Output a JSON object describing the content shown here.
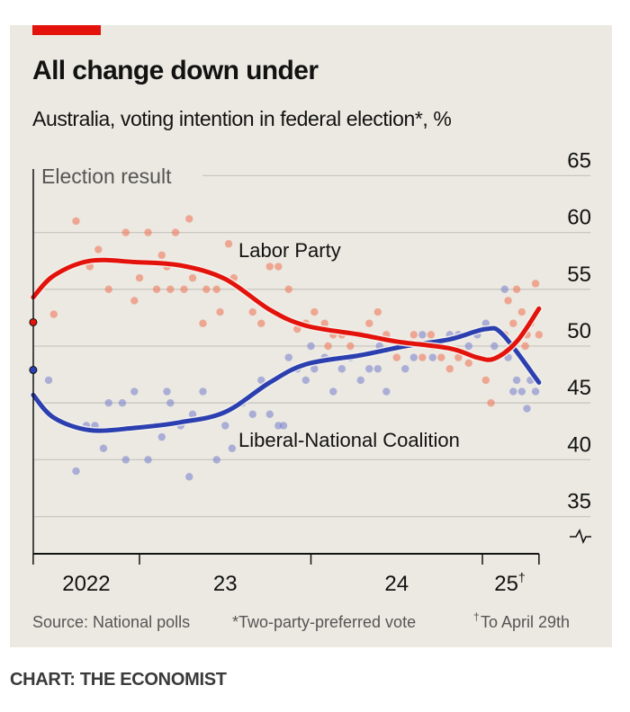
{
  "colors": {
    "labor": "#e3120b",
    "coalition": "#2b3fb0",
    "labor_dot": "#f07a5e",
    "coalition_dot": "#7f86cf",
    "accent": "#e3120b"
  },
  "chart_data": {
    "type": "line",
    "title": "All change down under",
    "subtitle": "Australia, voting intention in federal election*, %",
    "xlabel": "",
    "ylabel": "%",
    "ylim": [
      32,
      65
    ],
    "xlim": [
      2022.38,
      2025.33
    ],
    "y_ticks": [
      35,
      40,
      45,
      50,
      55,
      60,
      65
    ],
    "y_tick_labels": [
      "35",
      "40",
      "45",
      "50",
      "55",
      "60",
      "65"
    ],
    "x_ticks": [
      2022.38,
      2023.0,
      2024.0,
      2025.0,
      2025.33
    ],
    "x_tick_labels": [
      {
        "label": "2022",
        "at": 2022.69,
        "sup": ""
      },
      {
        "label": "23",
        "at": 2023.5,
        "sup": ""
      },
      {
        "label": "24",
        "at": 2024.5,
        "sup": ""
      },
      {
        "label": "25",
        "at": 2025.16,
        "sup": "†"
      }
    ],
    "grid": true,
    "axis_break": true,
    "election_label": "Election result",
    "election_result": {
      "t": 2022.38,
      "labor": 52.1,
      "coalition": 47.9
    },
    "series": [
      {
        "name": "Labor Party",
        "key": "labor",
        "trend": [
          [
            2022.38,
            54.3
          ],
          [
            2022.5,
            56.2
          ],
          [
            2022.71,
            57.5
          ],
          [
            2022.97,
            57.4
          ],
          [
            2023.24,
            57.1
          ],
          [
            2023.5,
            55.9
          ],
          [
            2023.76,
            53.2
          ],
          [
            2023.97,
            51.8
          ],
          [
            2024.29,
            51
          ],
          [
            2024.5,
            50.4
          ],
          [
            2024.81,
            49.8
          ],
          [
            2024.97,
            49
          ],
          [
            2025.07,
            48.9
          ],
          [
            2025.2,
            50.4
          ],
          [
            2025.33,
            53.3
          ]
        ],
        "polls": [
          [
            2022.63,
            61
          ],
          [
            2022.71,
            57
          ],
          [
            2022.76,
            58.5
          ],
          [
            2022.82,
            55
          ],
          [
            2022.92,
            60
          ],
          [
            2022.97,
            54
          ],
          [
            2023.05,
            60
          ],
          [
            2023.1,
            55
          ],
          [
            2023.13,
            58
          ],
          [
            2023.16,
            57
          ],
          [
            2023.18,
            55
          ],
          [
            2023.21,
            60
          ],
          [
            2023.26,
            55
          ],
          [
            2023.29,
            61.2
          ],
          [
            2023.31,
            56
          ],
          [
            2023.37,
            52
          ],
          [
            2023.39,
            55
          ],
          [
            2023.45,
            55
          ],
          [
            2023.47,
            53
          ],
          [
            2023.52,
            59
          ],
          [
            2023.55,
            56
          ],
          [
            2023.66,
            53
          ],
          [
            2023.71,
            52
          ],
          [
            2023.76,
            57
          ],
          [
            2023.81,
            57
          ],
          [
            2023.87,
            55
          ],
          [
            2023.92,
            51.5
          ],
          [
            2023.97,
            52
          ],
          [
            2024.02,
            53
          ],
          [
            2024.08,
            52
          ],
          [
            2024.13,
            51
          ],
          [
            2024.18,
            51
          ],
          [
            2024.23,
            50
          ],
          [
            2024.29,
            51
          ],
          [
            2024.34,
            52
          ],
          [
            2024.39,
            53
          ],
          [
            2024.44,
            51
          ],
          [
            2024.5,
            49
          ],
          [
            2024.55,
            50
          ],
          [
            2024.6,
            51
          ],
          [
            2024.65,
            49
          ],
          [
            2024.71,
            50
          ],
          [
            2024.76,
            49
          ],
          [
            2024.81,
            48
          ],
          [
            2024.86,
            49
          ],
          [
            2024.92,
            48.5
          ],
          [
            2025.02,
            47
          ],
          [
            2025.05,
            45
          ],
          [
            2025.13,
            51
          ],
          [
            2025.15,
            54
          ],
          [
            2025.18,
            52
          ],
          [
            2025.2,
            55
          ],
          [
            2025.23,
            53
          ],
          [
            2025.26,
            51
          ],
          [
            2025.28,
            52
          ],
          [
            2025.31,
            55.5
          ],
          [
            2025.33,
            51
          ],
          [
            2022.5,
            52.8
          ],
          [
            2023.0,
            56
          ],
          [
            2024.1,
            50
          ],
          [
            2024.7,
            51
          ],
          [
            2025.25,
            50
          ]
        ]
      },
      {
        "name": "Liberal-National Coalition",
        "key": "coalition",
        "trend": [
          [
            2022.38,
            45.7
          ],
          [
            2022.5,
            43.7
          ],
          [
            2022.71,
            42.6
          ],
          [
            2022.97,
            42.8
          ],
          [
            2023.24,
            43.3
          ],
          [
            2023.5,
            44.2
          ],
          [
            2023.76,
            46.8
          ],
          [
            2023.97,
            48.4
          ],
          [
            2024.29,
            49.2
          ],
          [
            2024.55,
            50
          ],
          [
            2024.81,
            50.6
          ],
          [
            2025.02,
            51.5
          ],
          [
            2025.12,
            51
          ],
          [
            2025.33,
            46.8
          ]
        ],
        "polls": [
          [
            2022.47,
            47
          ],
          [
            2022.63,
            39
          ],
          [
            2022.69,
            43
          ],
          [
            2022.74,
            43
          ],
          [
            2022.79,
            41
          ],
          [
            2022.82,
            45
          ],
          [
            2022.9,
            45
          ],
          [
            2022.92,
            40
          ],
          [
            2022.97,
            46
          ],
          [
            2023.05,
            40
          ],
          [
            2023.1,
            43
          ],
          [
            2023.13,
            42
          ],
          [
            2023.16,
            46
          ],
          [
            2023.18,
            45
          ],
          [
            2023.24,
            43
          ],
          [
            2023.29,
            38.5
          ],
          [
            2023.31,
            44
          ],
          [
            2023.37,
            46
          ],
          [
            2023.45,
            40
          ],
          [
            2023.5,
            43
          ],
          [
            2023.54,
            41
          ],
          [
            2023.6,
            45
          ],
          [
            2023.66,
            44
          ],
          [
            2023.71,
            47
          ],
          [
            2023.76,
            44
          ],
          [
            2023.81,
            43
          ],
          [
            2023.84,
            43
          ],
          [
            2023.87,
            49
          ],
          [
            2023.92,
            48
          ],
          [
            2023.97,
            47
          ],
          [
            2024.02,
            48
          ],
          [
            2024.08,
            49
          ],
          [
            2024.13,
            46
          ],
          [
            2024.18,
            48
          ],
          [
            2024.23,
            49
          ],
          [
            2024.29,
            47
          ],
          [
            2024.34,
            48
          ],
          [
            2024.39,
            48
          ],
          [
            2024.44,
            46
          ],
          [
            2024.5,
            50
          ],
          [
            2024.55,
            48
          ],
          [
            2024.6,
            49
          ],
          [
            2024.65,
            51
          ],
          [
            2024.71,
            49
          ],
          [
            2024.76,
            50
          ],
          [
            2024.81,
            51
          ],
          [
            2024.86,
            51
          ],
          [
            2024.92,
            50
          ],
          [
            2024.97,
            51
          ],
          [
            2025.02,
            52
          ],
          [
            2025.07,
            50
          ],
          [
            2025.13,
            55
          ],
          [
            2025.15,
            49
          ],
          [
            2025.18,
            46
          ],
          [
            2025.2,
            47
          ],
          [
            2025.23,
            46
          ],
          [
            2025.26,
            44.5
          ],
          [
            2025.28,
            47
          ],
          [
            2025.31,
            46
          ],
          [
            2024.0,
            50
          ],
          [
            2024.4,
            50
          ]
        ]
      }
    ],
    "source": "Source: National polls",
    "footnote_1": "*Two-party-preferred vote",
    "footnote_2": "To April 29th",
    "footnote_2_mark": "†"
  },
  "credit": "CHART: THE ECONOMIST"
}
